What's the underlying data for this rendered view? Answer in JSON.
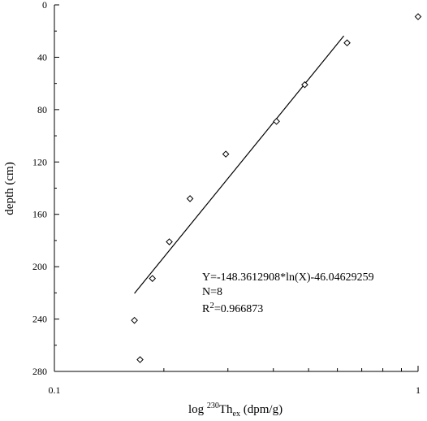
{
  "chart_data": {
    "type": "scatter",
    "xscale": "log",
    "xlim": [
      0.1,
      1
    ],
    "ylim": [
      0,
      280
    ],
    "y_inverted": true,
    "xticks": [
      0.1,
      1
    ],
    "xtick_labels": [
      "0.1",
      "1"
    ],
    "yticks": [
      0,
      40,
      80,
      120,
      160,
      200,
      240,
      280
    ],
    "ytick_labels": [
      "0",
      "40",
      "80",
      "120",
      "160",
      "200",
      "240",
      "280"
    ],
    "xlabel_main": "log ",
    "xlabel_sup": "230",
    "xlabel_base": "Th",
    "xlabel_sub": "ex",
    "xlabel_unit": " (dpm/g)",
    "ylabel": "depth (cm)",
    "marker": "diamond",
    "points": [
      {
        "x": 0.166,
        "y": 241
      },
      {
        "x": 0.172,
        "y": 271
      },
      {
        "x": 0.186,
        "y": 209
      },
      {
        "x": 0.207,
        "y": 181
      },
      {
        "x": 0.236,
        "y": 148
      },
      {
        "x": 0.296,
        "y": 114
      },
      {
        "x": 0.408,
        "y": 89
      },
      {
        "x": 0.488,
        "y": 61
      },
      {
        "x": 0.638,
        "y": 29
      },
      {
        "x": 1.0,
        "y": 9
      }
    ],
    "fit_line": {
      "a": -148.3612908,
      "b": -46.04629259,
      "x_range": [
        0.166,
        0.625
      ]
    },
    "annotations": {
      "equation": "Y=-148.3612908*ln(X)-46.04629259",
      "n": "N=8",
      "r2_prefix": "R",
      "r2_sup": "2",
      "r2_value": "=0.966873"
    }
  }
}
